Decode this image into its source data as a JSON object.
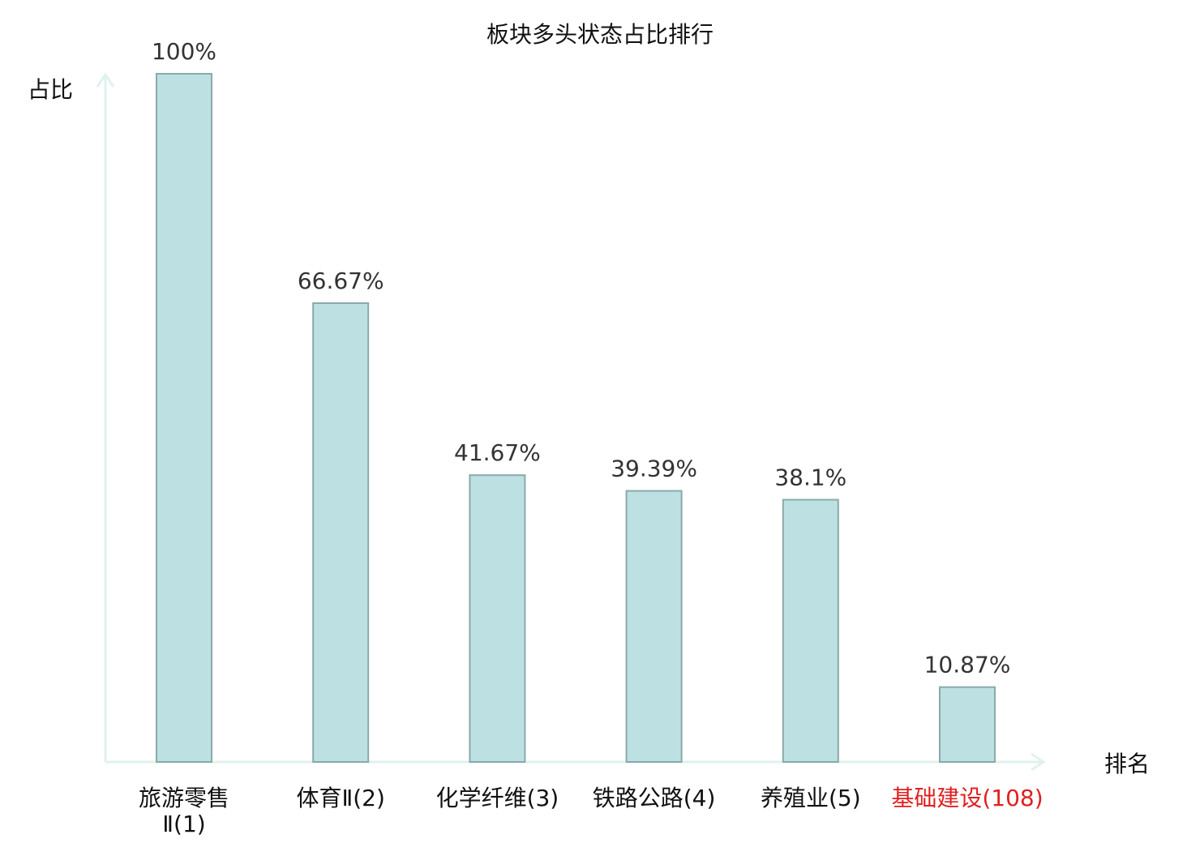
{
  "chart_data": {
    "type": "bar",
    "title": "板块多头状态占比排行",
    "ylabel": "占比",
    "xlabel": "排名",
    "ylim": [
      0,
      100
    ],
    "grid": false,
    "categories": [
      [
        "旅游零售",
        "Ⅱ(1)"
      ],
      [
        "体育Ⅱ(2)"
      ],
      [
        "化学纤维(3)"
      ],
      [
        "铁路公路(4)"
      ],
      [
        "养殖业(5)"
      ],
      [
        "基础建设(108)"
      ]
    ],
    "values": [
      100,
      66.67,
      41.67,
      39.39,
      38.1,
      10.87
    ],
    "value_labels": [
      "100%",
      "66.67%",
      "41.67%",
      "39.39%",
      "38.1%",
      "10.87%"
    ],
    "highlight_index": 5,
    "colors": {
      "bar_fill": "#bde0e3",
      "bar_stroke": "#8aaaa9",
      "axis": "#dff2ee",
      "highlight_text": "#e02020"
    }
  }
}
